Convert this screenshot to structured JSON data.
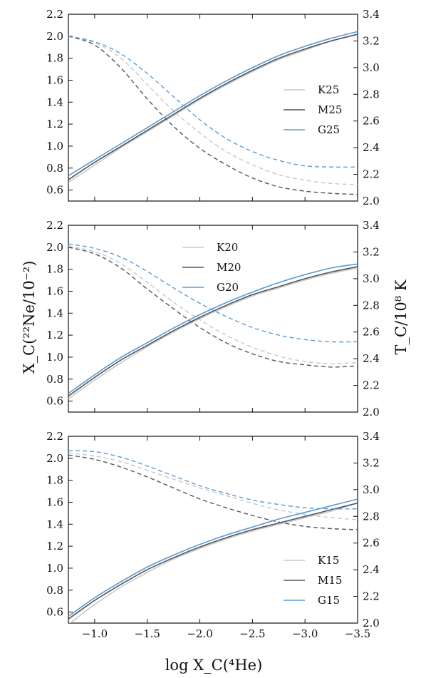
{
  "figure": {
    "left_axis_label": "X_C(²²Ne/10⁻²)",
    "right_axis_label": "T_C/10⁸ K",
    "bottom_axis_label": "log X_C(⁴He)"
  },
  "chart_data": [
    {
      "type": "line",
      "panel": "top",
      "x_range": [
        -0.75,
        -3.5
      ],
      "xticks": [
        "−1.0",
        "−1.5",
        "−2.0",
        "−2.5",
        "−3.0",
        "−3.5"
      ],
      "xtick_values": [
        -1.0,
        -1.5,
        -2.0,
        -2.5,
        -3.0,
        -3.5
      ],
      "ylim_left": [
        0.5,
        2.2
      ],
      "yticks_left": [
        "0.6",
        "0.8",
        "1.0",
        "1.2",
        "1.4",
        "1.6",
        "1.8",
        "2.0",
        "2.2"
      ],
      "ylim_right": [
        2.0,
        3.4
      ],
      "yticks_right": [
        "2.0",
        "2.2",
        "2.4",
        "2.6",
        "2.8",
        "3.0",
        "3.2",
        "3.4"
      ],
      "legend_position": "middle-right",
      "series": [
        {
          "name": "K25",
          "color": "#c8c8c8",
          "x": [
            -0.75,
            -1.0,
            -1.25,
            -1.5,
            -1.75,
            -2.0,
            -2.25,
            -2.5,
            -2.75,
            -3.0,
            -3.25,
            -3.5
          ],
          "xc_dashed": [
            2.0,
            1.94,
            1.8,
            1.56,
            1.32,
            1.12,
            0.95,
            0.83,
            0.74,
            0.69,
            0.66,
            0.65
          ],
          "tc_solid": [
            2.14,
            2.27,
            2.4,
            2.52,
            2.64,
            2.76,
            2.87,
            2.97,
            3.06,
            3.13,
            3.2,
            3.25
          ]
        },
        {
          "name": "M25",
          "color": "#555555",
          "x": [
            -0.75,
            -1.0,
            -1.25,
            -1.5,
            -1.75,
            -2.0,
            -2.25,
            -2.5,
            -2.75,
            -3.0,
            -3.25,
            -3.5
          ],
          "xc_dashed": [
            2.0,
            1.92,
            1.71,
            1.43,
            1.18,
            0.98,
            0.83,
            0.71,
            0.63,
            0.59,
            0.57,
            0.56
          ],
          "tc_solid": [
            2.16,
            2.29,
            2.41,
            2.53,
            2.65,
            2.77,
            2.88,
            2.98,
            3.07,
            3.14,
            3.2,
            3.25
          ]
        },
        {
          "name": "G25",
          "color": "#5b9bd5",
          "x": [
            -0.75,
            -1.0,
            -1.25,
            -1.5,
            -1.75,
            -2.0,
            -2.25,
            -2.5,
            -2.75,
            -3.0,
            -3.25,
            -3.5
          ],
          "xc_dashed": [
            2.0,
            1.95,
            1.84,
            1.66,
            1.45,
            1.24,
            1.07,
            0.95,
            0.87,
            0.82,
            0.81,
            0.81
          ],
          "tc_solid": [
            2.19,
            2.31,
            2.43,
            2.55,
            2.67,
            2.79,
            2.9,
            3.0,
            3.09,
            3.16,
            3.22,
            3.27
          ]
        }
      ]
    },
    {
      "type": "line",
      "panel": "middle",
      "x_range": [
        -0.75,
        -3.5
      ],
      "xticks": [
        "−1.0",
        "−1.5",
        "−2.0",
        "−2.5",
        "−3.0",
        "−3.5"
      ],
      "xtick_values": [
        -1.0,
        -1.5,
        -2.0,
        -2.5,
        -3.0,
        -3.5
      ],
      "ylim_left": [
        0.5,
        2.2
      ],
      "yticks_left": [
        "0.6",
        "0.8",
        "1.0",
        "1.2",
        "1.4",
        "1.6",
        "1.8",
        "2.0",
        "2.2"
      ],
      "ylim_right": [
        2.0,
        3.4
      ],
      "yticks_right": [
        "2.0",
        "2.2",
        "2.4",
        "2.6",
        "2.8",
        "3.0",
        "3.2",
        "3.4"
      ],
      "legend_position": "top-center",
      "series": [
        {
          "name": "K20",
          "color": "#c8c8c8",
          "x": [
            -0.75,
            -1.0,
            -1.25,
            -1.5,
            -1.75,
            -2.0,
            -2.25,
            -2.5,
            -2.75,
            -3.0,
            -3.25,
            -3.5
          ],
          "xc_dashed": [
            2.01,
            1.96,
            1.85,
            1.68,
            1.5,
            1.34,
            1.2,
            1.09,
            1.01,
            0.96,
            0.94,
            0.95
          ],
          "tc_solid": [
            2.1,
            2.24,
            2.37,
            2.49,
            2.6,
            2.7,
            2.79,
            2.87,
            2.93,
            2.99,
            3.04,
            3.08
          ]
        },
        {
          "name": "M20",
          "color": "#555555",
          "x": [
            -0.75,
            -1.0,
            -1.25,
            -1.5,
            -1.75,
            -2.0,
            -2.25,
            -2.5,
            -2.75,
            -3.0,
            -3.25,
            -3.5
          ],
          "xc_dashed": [
            2.0,
            1.94,
            1.81,
            1.62,
            1.44,
            1.27,
            1.13,
            1.03,
            0.96,
            0.93,
            0.91,
            0.92
          ],
          "tc_solid": [
            2.12,
            2.26,
            2.39,
            2.5,
            2.61,
            2.71,
            2.8,
            2.88,
            2.94,
            3.0,
            3.05,
            3.09
          ]
        },
        {
          "name": "G20",
          "color": "#5b9bd5",
          "x": [
            -0.75,
            -1.0,
            -1.25,
            -1.5,
            -1.75,
            -2.0,
            -2.25,
            -2.5,
            -2.75,
            -3.0,
            -3.25,
            -3.5
          ],
          "xc_dashed": [
            2.03,
            1.99,
            1.91,
            1.78,
            1.63,
            1.49,
            1.37,
            1.27,
            1.2,
            1.16,
            1.14,
            1.14
          ],
          "tc_solid": [
            2.14,
            2.28,
            2.41,
            2.52,
            2.63,
            2.73,
            2.82,
            2.9,
            2.97,
            3.03,
            3.08,
            3.11
          ]
        }
      ]
    },
    {
      "type": "line",
      "panel": "bottom",
      "x_range": [
        -0.75,
        -3.5
      ],
      "xticks": [
        "−1.0",
        "−1.5",
        "−2.0",
        "−2.5",
        "−3.0",
        "−3.5"
      ],
      "xtick_values": [
        -1.0,
        -1.5,
        -2.0,
        -2.5,
        -3.0,
        -3.5
      ],
      "ylim_left": [
        0.5,
        2.2
      ],
      "yticks_left": [
        "0.6",
        "0.8",
        "1.0",
        "1.2",
        "1.4",
        "1.6",
        "1.8",
        "2.0",
        "2.2"
      ],
      "ylim_right": [
        2.0,
        3.4
      ],
      "yticks_right": [
        "2.0",
        "2.2",
        "2.4",
        "2.6",
        "2.8",
        "3.0",
        "3.2",
        "3.4"
      ],
      "legend_position": "bottom-right",
      "series": [
        {
          "name": "K15",
          "color": "#c8c8c8",
          "x": [
            -0.75,
            -1.0,
            -1.25,
            -1.5,
            -1.75,
            -2.0,
            -2.25,
            -2.5,
            -2.75,
            -3.0,
            -3.25,
            -3.5
          ],
          "xc_dashed": [
            2.05,
            2.02,
            1.97,
            1.89,
            1.81,
            1.73,
            1.66,
            1.59,
            1.53,
            1.49,
            1.46,
            1.44
          ],
          "tc_solid": [
            1.99,
            2.14,
            2.27,
            2.38,
            2.48,
            2.56,
            2.63,
            2.69,
            2.74,
            2.79,
            2.84,
            2.9
          ]
        },
        {
          "name": "M15",
          "color": "#555555",
          "x": [
            -0.75,
            -1.0,
            -1.25,
            -1.5,
            -1.75,
            -2.0,
            -2.25,
            -2.5,
            -2.75,
            -3.0,
            -3.25,
            -3.5
          ],
          "xc_dashed": [
            2.03,
            1.99,
            1.92,
            1.83,
            1.73,
            1.63,
            1.55,
            1.48,
            1.42,
            1.38,
            1.36,
            1.35
          ],
          "tc_solid": [
            2.03,
            2.17,
            2.29,
            2.4,
            2.49,
            2.57,
            2.64,
            2.7,
            2.75,
            2.8,
            2.85,
            2.9
          ]
        },
        {
          "name": "G15",
          "color": "#5b9bd5",
          "x": [
            -0.75,
            -1.0,
            -1.25,
            -1.5,
            -1.75,
            -2.0,
            -2.25,
            -2.5,
            -2.75,
            -3.0,
            -3.25,
            -3.5
          ],
          "xc_dashed": [
            2.07,
            2.06,
            2.01,
            1.93,
            1.84,
            1.75,
            1.68,
            1.62,
            1.58,
            1.55,
            1.54,
            1.54
          ],
          "tc_solid": [
            2.05,
            2.19,
            2.31,
            2.42,
            2.51,
            2.59,
            2.66,
            2.72,
            2.78,
            2.83,
            2.88,
            2.93
          ]
        }
      ]
    }
  ]
}
